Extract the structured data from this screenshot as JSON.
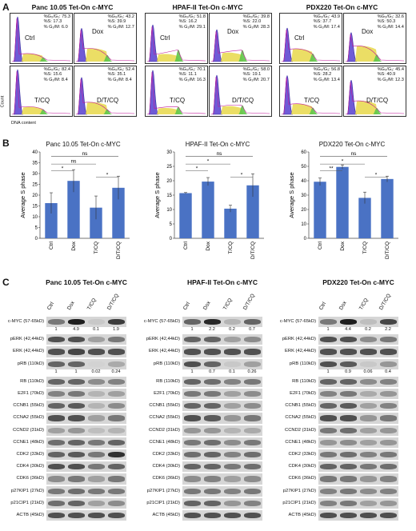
{
  "panel_labels": {
    "a": "A",
    "b": "B",
    "c": "C"
  },
  "flow": {
    "ylabel": "Count",
    "xlabel": "DNA content",
    "groups": [
      {
        "title": "Panc 10.05 Tet-On c-MYC",
        "panels": [
          {
            "cond": "Ctrl",
            "g": "%G₀/G₁: 75.3",
            "s": "%S: 17.3",
            "m": "% G₂/M: 6.0"
          },
          {
            "cond": "Dox",
            "g": "%G₀/G₁: 43.2",
            "s": "%S: 39.9",
            "m": "% G₂/M: 12.7"
          },
          {
            "cond": "T/CQ",
            "g": "%G₀/G₁: 82.4",
            "s": "%S: 15.6",
            "m": "% G₂/M: 8.4"
          },
          {
            "cond": "D/T/CQ",
            "g": "%G₀/G₁: 52.4",
            "s": "%S: 35.1",
            "m": "% G₂/M: 8.4"
          }
        ]
      },
      {
        "title": "HPAF-II Tet-On c-MYC",
        "panels": [
          {
            "cond": "Ctrl",
            "g": "%G₀/G₁: 51.8",
            "s": "%S: 16.2",
            "m": "% G₂/M: 29.1"
          },
          {
            "cond": "Dox",
            "g": "%G₀/G₁: 39.8",
            "s": "%S: 22.0",
            "m": "% G₂/M: 28.3"
          },
          {
            "cond": "T/CQ",
            "g": "%G₀/G₁: 70.1",
            "s": "%S: 11.1",
            "m": "% G₂/M: 16.3"
          },
          {
            "cond": "D/T/CQ",
            "g": "%G₀/G₁: 58.0",
            "s": "%S: 19.1",
            "m": "% G₂/M: 20.7"
          }
        ]
      },
      {
        "title": "PDX220 Tet-On c-MYC",
        "panels": [
          {
            "cond": "Ctrl",
            "g": "%G₀/G₁: 43.9",
            "s": "%S: 37.7",
            "m": "% G₂/M: 17.4"
          },
          {
            "cond": "Dox",
            "g": "%G₀/G₁: 32.6",
            "s": "%S: 50.3",
            "m": "% G₂/M: 14.4"
          },
          {
            "cond": "T/CQ",
            "g": "%G₀/G₁: 56.8",
            "s": "%S: 28.2",
            "m": "% G₂/M: 13.4"
          },
          {
            "cond": "D/T/CQ",
            "g": "%G₀/G₁: 45.4",
            "s": "%S: 40.9",
            "m": "% G₂/M: 12.3"
          }
        ]
      }
    ]
  },
  "chart_data": [
    {
      "type": "bar",
      "title": "Panc 10.05 Tet-On c-MYC",
      "ylabel": "Average S phase",
      "categories": [
        "Ctrl",
        "Dox",
        "T/CQ",
        "D/T/CQ"
      ],
      "values": [
        16.3,
        26.6,
        14.2,
        23.4
      ],
      "errors": [
        4.8,
        5.2,
        5.4,
        5.4
      ],
      "ylim": [
        0,
        40
      ],
      "yticks": [
        0,
        5,
        10,
        15,
        20,
        25,
        30,
        35,
        40
      ],
      "brackets": [
        {
          "from": 0,
          "to": 1,
          "label": "*"
        },
        {
          "from": 0,
          "to": 2,
          "label": "ns"
        },
        {
          "from": 2,
          "to": 3,
          "label": "*"
        },
        {
          "from": 0,
          "to": 3,
          "label": "ns"
        }
      ],
      "color": "#4a72c4"
    },
    {
      "type": "bar",
      "title": "HPAF-II Tet-On c-MYC",
      "ylabel": "Average S phase",
      "categories": [
        "Ctrl",
        "Dox",
        "T/CQ",
        "D/T/CQ"
      ],
      "values": [
        15.7,
        19.7,
        10.3,
        18.4
      ],
      "errors": [
        0.2,
        1.4,
        1.2,
        4.0
      ],
      "ylim": [
        0,
        30
      ],
      "yticks": [
        0,
        5,
        10,
        15,
        20,
        25,
        30
      ],
      "brackets": [
        {
          "from": 0,
          "to": 1,
          "label": "*"
        },
        {
          "from": 0,
          "to": 2,
          "label": "*"
        },
        {
          "from": 2,
          "to": 3,
          "label": "*"
        },
        {
          "from": 0,
          "to": 3,
          "label": "ns"
        }
      ],
      "color": "#4a72c4"
    },
    {
      "type": "bar",
      "title": "PDX220 Tet-On c-MYC",
      "ylabel": "Average S phase",
      "categories": [
        "Ctrl",
        "Dox",
        "T/CQ",
        "D/T/CQ"
      ],
      "values": [
        39.3,
        49.6,
        28.1,
        41.2
      ],
      "errors": [
        2.6,
        1.4,
        4.0,
        2.0
      ],
      "ylim": [
        0,
        60
      ],
      "yticks": [
        0,
        10,
        20,
        30,
        40,
        50,
        60
      ],
      "brackets": [
        {
          "from": 0,
          "to": 1,
          "label": "**"
        },
        {
          "from": 0,
          "to": 2,
          "label": "*"
        },
        {
          "from": 2,
          "to": 3,
          "label": "*"
        },
        {
          "from": 0,
          "to": 3,
          "label": "ns"
        }
      ],
      "color": "#4a72c4"
    }
  ],
  "blots": {
    "lanes": [
      "Ctrl",
      "Dox",
      "T/CQ",
      "D/T/CQ"
    ],
    "rows": [
      "c-MYC (57-65kD)",
      "pERK (42,44kD)",
      "ERK (42,44kD)",
      "pRB (110kD)",
      "RB (110kD)",
      "E2F1 (70kD)",
      "CCNB1 (55kD)",
      "CCNA2 (55kD)",
      "CCND2 (31kD)",
      "CCNE1 (48kD)",
      "CDK2 (33kD)",
      "CDK4 (30kD)",
      "CDK6 (36kD)",
      "p27KIP1 (27kD)",
      "p21CIP1 (21kD)",
      "ACTB (45kD)"
    ],
    "groups": [
      {
        "title": "Panc 10.05 Tet-On c-MYC",
        "cmyc_quant": [
          "1",
          "4.9",
          "0.1",
          "1.9"
        ],
        "prb_quant": [
          "1",
          "1",
          "0.02",
          "0.24"
        ],
        "intensity": [
          [
            0.5,
            0.95,
            0.1,
            0.8
          ],
          [
            0.7,
            0.7,
            0.3,
            0.5
          ],
          [
            0.7,
            0.75,
            0.7,
            0.7
          ],
          [
            0.6,
            0.6,
            0.05,
            0.25
          ],
          [
            0.6,
            0.6,
            0.4,
            0.45
          ],
          [
            0.45,
            0.5,
            0.2,
            0.3
          ],
          [
            0.6,
            0.65,
            0.2,
            0.4
          ],
          [
            0.7,
            0.7,
            0.3,
            0.5
          ],
          [
            0.3,
            0.35,
            0.15,
            0.2
          ],
          [
            0.55,
            0.6,
            0.5,
            0.6
          ],
          [
            0.6,
            0.65,
            0.5,
            0.85
          ],
          [
            0.7,
            0.7,
            0.5,
            0.6
          ],
          [
            0.4,
            0.5,
            0.3,
            0.5
          ],
          [
            0.5,
            0.55,
            0.5,
            0.5
          ],
          [
            0.55,
            0.6,
            0.3,
            0.4
          ],
          [
            0.7,
            0.7,
            0.7,
            0.7
          ]
        ]
      },
      {
        "title": "HPAF-II Tet-On c-MYC",
        "cmyc_quant": [
          "1",
          "2.2",
          "0.2",
          "0.7"
        ],
        "prb_quant": [
          "1",
          "0.7",
          "0.1",
          "0.26"
        ],
        "intensity": [
          [
            0.6,
            0.9,
            0.2,
            0.6
          ],
          [
            0.6,
            0.6,
            0.3,
            0.4
          ],
          [
            0.7,
            0.7,
            0.7,
            0.7
          ],
          [
            0.7,
            0.6,
            0.1,
            0.3
          ],
          [
            0.6,
            0.55,
            0.45,
            0.5
          ],
          [
            0.5,
            0.5,
            0.3,
            0.4
          ],
          [
            0.6,
            0.6,
            0.3,
            0.4
          ],
          [
            0.7,
            0.65,
            0.35,
            0.5
          ],
          [
            0.35,
            0.35,
            0.2,
            0.25
          ],
          [
            0.5,
            0.55,
            0.4,
            0.5
          ],
          [
            0.55,
            0.6,
            0.45,
            0.55
          ],
          [
            0.6,
            0.6,
            0.5,
            0.55
          ],
          [
            0.4,
            0.45,
            0.3,
            0.4
          ],
          [
            0.5,
            0.5,
            0.45,
            0.5
          ],
          [
            0.6,
            0.6,
            0.35,
            0.45
          ],
          [
            0.7,
            0.7,
            0.7,
            0.7
          ]
        ]
      },
      {
        "title": "PDX220 Tet-On c-MYC",
        "cmyc_quant": [
          "1",
          "4.4",
          "0.2",
          "2.2"
        ],
        "prb_quant": [
          "1",
          "0.9",
          "0.06",
          "0.4"
        ],
        "intensity": [
          [
            0.5,
            0.95,
            0.15,
            0.75
          ],
          [
            0.7,
            0.7,
            0.4,
            0.5
          ],
          [
            0.7,
            0.7,
            0.7,
            0.7
          ],
          [
            0.7,
            0.65,
            0.1,
            0.35
          ],
          [
            0.6,
            0.6,
            0.4,
            0.45
          ],
          [
            0.45,
            0.5,
            0.25,
            0.35
          ],
          [
            0.6,
            0.65,
            0.3,
            0.45
          ],
          [
            0.7,
            0.7,
            0.35,
            0.5
          ],
          [
            0.5,
            0.55,
            0.3,
            0.35
          ],
          [
            0.35,
            0.4,
            0.3,
            0.35
          ],
          [
            0.5,
            0.55,
            0.45,
            0.5
          ],
          [
            0.6,
            0.6,
            0.5,
            0.55
          ],
          [
            0.5,
            0.5,
            0.35,
            0.45
          ],
          [
            0.45,
            0.5,
            0.4,
            0.45
          ],
          [
            0.45,
            0.5,
            0.3,
            0.35
          ],
          [
            0.7,
            0.7,
            0.7,
            0.7
          ]
        ]
      }
    ]
  }
}
